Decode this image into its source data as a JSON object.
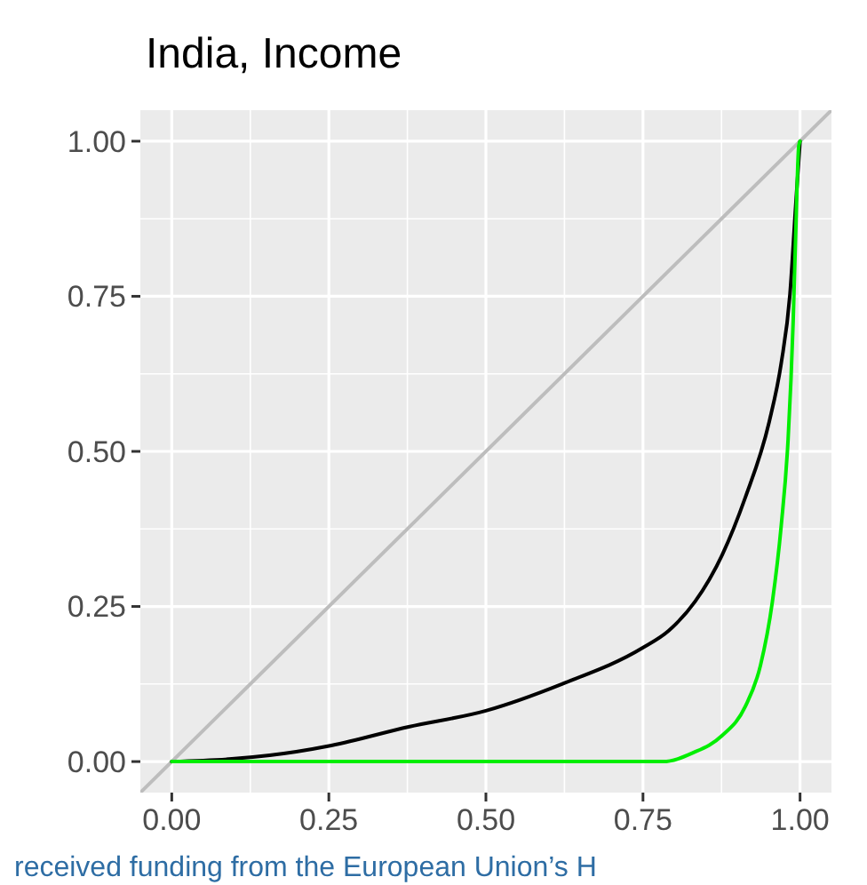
{
  "chart_data": {
    "type": "line",
    "title": "India, Income",
    "xlim": [
      -0.05,
      1.05
    ],
    "ylim": [
      -0.05,
      1.05
    ],
    "xticks": [
      {
        "value": 0,
        "label": "0.00"
      },
      {
        "value": 0.25,
        "label": "0.25"
      },
      {
        "value": 0.5,
        "label": "0.50"
      },
      {
        "value": 0.75,
        "label": "0.75"
      },
      {
        "value": 1,
        "label": "1.00"
      }
    ],
    "yticks": [
      {
        "value": 0,
        "label": "0.00"
      },
      {
        "value": 0.25,
        "label": "0.25"
      },
      {
        "value": 0.5,
        "label": "0.50"
      },
      {
        "value": 0.75,
        "label": "0.75"
      },
      {
        "value": 1,
        "label": "1.00"
      }
    ],
    "grid": true,
    "series": [
      {
        "color": "#bdbdbd",
        "x": [
          -0.05,
          1.05
        ],
        "values": [
          -0.05,
          1.05
        ]
      },
      {
        "color": "#000000",
        "x": [
          0,
          0.104,
          0.198,
          0.254,
          0.377,
          0.5,
          0.621,
          0.749,
          0.791,
          0.833,
          0.876,
          0.913,
          0.951,
          0.97,
          0.984,
          0.993,
          1
        ],
        "values": [
          0,
          0.005,
          0.016,
          0.026,
          0.056,
          0.082,
          0.125,
          0.183,
          0.211,
          0.258,
          0.333,
          0.426,
          0.548,
          0.642,
          0.754,
          0.895,
          1
        ]
      },
      {
        "color": "#00ee00",
        "x": [
          0,
          0.5,
          0.782,
          0.829,
          0.876,
          0.913,
          0.937,
          0.956,
          0.97,
          0.981,
          0.989,
          0.993,
          0.998,
          1
        ],
        "values": [
          0,
          0,
          0,
          0.014,
          0.042,
          0.089,
          0.155,
          0.258,
          0.38,
          0.52,
          0.708,
          0.848,
          0.993,
          1
        ]
      }
    ],
    "annotations": [
      "received funding from the European Union’s H"
    ]
  }
}
